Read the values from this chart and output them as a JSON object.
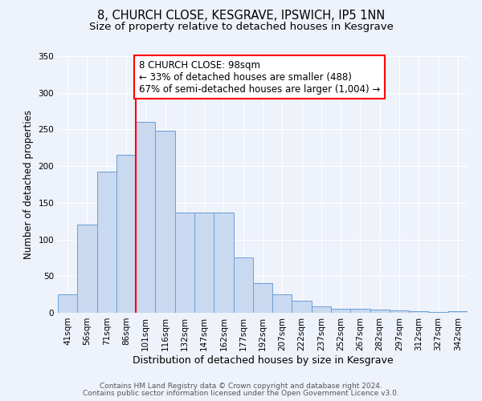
{
  "title": "8, CHURCH CLOSE, KESGRAVE, IPSWICH, IP5 1NN",
  "subtitle": "Size of property relative to detached houses in Kesgrave",
  "xlabel": "Distribution of detached houses by size in Kesgrave",
  "ylabel": "Number of detached properties",
  "categories": [
    "41sqm",
    "56sqm",
    "71sqm",
    "86sqm",
    "101sqm",
    "116sqm",
    "132sqm",
    "147sqm",
    "162sqm",
    "177sqm",
    "192sqm",
    "207sqm",
    "222sqm",
    "237sqm",
    "252sqm",
    "267sqm",
    "282sqm",
    "297sqm",
    "312sqm",
    "327sqm",
    "342sqm"
  ],
  "values": [
    25,
    120,
    193,
    215,
    260,
    248,
    137,
    137,
    137,
    75,
    40,
    25,
    16,
    9,
    6,
    5,
    4,
    3,
    2,
    1,
    2
  ],
  "bar_color": "#c9d9f0",
  "bar_edge_color": "#6a9fd8",
  "vline_x_index": 4,
  "vline_color": "red",
  "annotation_text": "8 CHURCH CLOSE: 98sqm\n← 33% of detached houses are smaller (488)\n67% of semi-detached houses are larger (1,004) →",
  "annotation_box_color": "white",
  "annotation_box_edge_color": "red",
  "ylim": [
    0,
    350
  ],
  "yticks": [
    0,
    50,
    100,
    150,
    200,
    250,
    300,
    350
  ],
  "footer_line1": "Contains HM Land Registry data © Crown copyright and database right 2024.",
  "footer_line2": "Contains public sector information licensed under the Open Government Licence v3.0.",
  "background_color": "#eef2fb",
  "plot_bg_color": "#eef2fb",
  "title_fontsize": 10.5,
  "subtitle_fontsize": 9.5,
  "xlabel_fontsize": 9,
  "ylabel_fontsize": 8.5,
  "tick_fontsize": 7.5,
  "annotation_fontsize": 8.5,
  "footer_fontsize": 6.5
}
